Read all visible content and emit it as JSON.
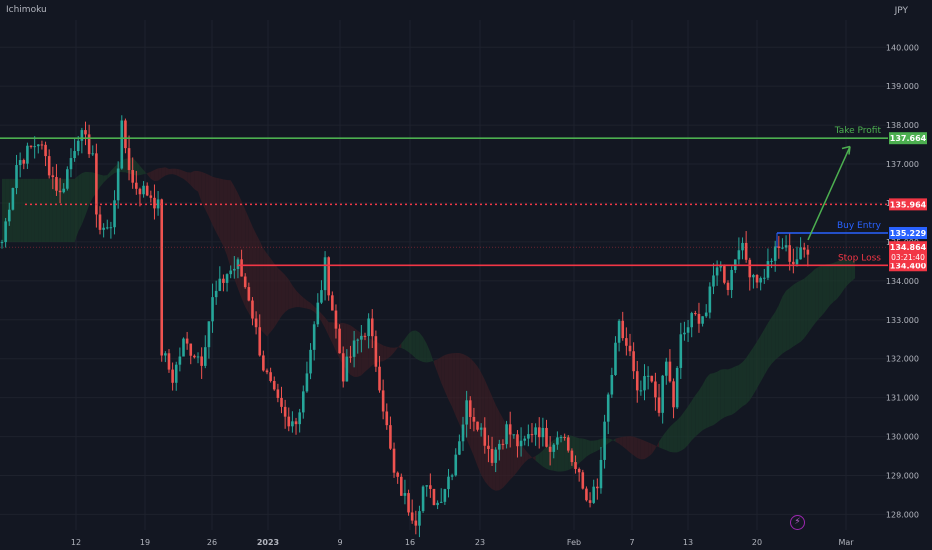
{
  "indicator": "Ichimoku",
  "currency": "JPY",
  "colors": {
    "background": "#131722",
    "up": "#26a69a",
    "down": "#ef5350",
    "take_profit": "#4caf50",
    "entry": "#2962ff",
    "stop": "#f23645",
    "grid": "#1e222d",
    "axis_text": "#b2b5be",
    "cloud_bull": "#1b3a2a",
    "cloud_bear": "#3a1d24"
  },
  "chart_data": {
    "type": "candlestick",
    "ylim": [
      127.6,
      140.7
    ],
    "y_ticks": [
      "140.000",
      "139.000",
      "138.000",
      "137.000",
      "136.000",
      "135.000",
      "134.000",
      "133.000",
      "132.000",
      "131.000",
      "130.000",
      "129.000",
      "128.000"
    ],
    "x_ticks": [
      "12",
      "19",
      "26",
      "2023",
      "9",
      "16",
      "23",
      "Feb",
      "7",
      "13",
      "20",
      "Mar"
    ],
    "close_path": [
      [
        0,
        135.0
      ],
      [
        4,
        137.0
      ],
      [
        10,
        137.6
      ],
      [
        16,
        136.2
      ],
      [
        21,
        137.8
      ],
      [
        25,
        137.3
      ],
      [
        26,
        135.5
      ],
      [
        30,
        135.3
      ],
      [
        33,
        137.9
      ],
      [
        36,
        136.5
      ],
      [
        41,
        136.2
      ],
      [
        43,
        135.9
      ],
      [
        44,
        132.2
      ],
      [
        47,
        131.5
      ],
      [
        50,
        132.4
      ],
      [
        55,
        132.0
      ],
      [
        58,
        133.5
      ],
      [
        62,
        134.2
      ],
      [
        65,
        134.4
      ],
      [
        68,
        133.6
      ],
      [
        72,
        131.8
      ],
      [
        75,
        131.0
      ],
      [
        79,
        130.2
      ],
      [
        82,
        130.7
      ],
      [
        86,
        132.8
      ],
      [
        89,
        134.4
      ],
      [
        91,
        133.3
      ],
      [
        94,
        131.6
      ],
      [
        97,
        132.3
      ],
      [
        101,
        132.9
      ],
      [
        104,
        131.4
      ],
      [
        108,
        129.0
      ],
      [
        112,
        128.2
      ],
      [
        114,
        127.9
      ],
      [
        116,
        128.7
      ],
      [
        120,
        128.3
      ],
      [
        124,
        129.2
      ],
      [
        128,
        130.8
      ],
      [
        131,
        130.4
      ],
      [
        135,
        129.5
      ],
      [
        139,
        130.2
      ],
      [
        143,
        129.7
      ],
      [
        147,
        130.3
      ],
      [
        151,
        129.8
      ],
      [
        154,
        130.2
      ],
      [
        157,
        129.4
      ],
      [
        161,
        128.4
      ],
      [
        164,
        128.6
      ],
      [
        167,
        131.0
      ],
      [
        170,
        132.8
      ],
      [
        173,
        132.1
      ],
      [
        175,
        131.0
      ],
      [
        178,
        131.5
      ],
      [
        181,
        130.8
      ],
      [
        183,
        131.9
      ],
      [
        185,
        130.8
      ],
      [
        187,
        132.5
      ],
      [
        190,
        133.0
      ],
      [
        194,
        133.2
      ],
      [
        197,
        134.5
      ],
      [
        200,
        133.9
      ],
      [
        203,
        135.0
      ],
      [
        206,
        134.3
      ],
      [
        209,
        134.0
      ],
      [
        212,
        134.6
      ],
      [
        215,
        134.9
      ],
      [
        218,
        134.5
      ],
      [
        222,
        134.86
      ]
    ],
    "bars": 223,
    "levels": [
      {
        "name": "Take Profit",
        "value": 137.664,
        "label": "137.664",
        "color": "#4caf50",
        "style": "solid"
      },
      {
        "name": "",
        "value": 135.964,
        "label": "135.964",
        "color": "#f23645",
        "style": "dotted"
      },
      {
        "name": "Buy Entry",
        "value": 135.229,
        "label": "135.229",
        "color": "#2962ff",
        "style": "solid"
      },
      {
        "name": "Stop Loss",
        "value": 134.4,
        "label": "134.400",
        "color": "#f23645",
        "style": "solid"
      }
    ],
    "last_price": {
      "value": 134.864,
      "label": "134.864",
      "countdown": "03:21:40",
      "color": "#f23645"
    },
    "annotations": [
      "Take Profit",
      "Buy Entry",
      "Stop Loss"
    ]
  }
}
